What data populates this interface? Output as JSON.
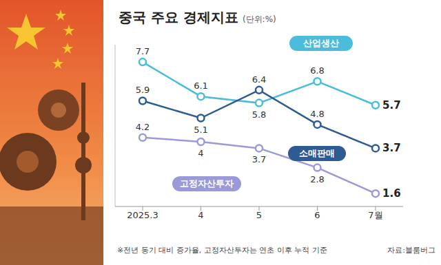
{
  "chart_data": {
    "type": "line",
    "title": "중국 주요 경제지표",
    "subtitle": "(단위:%)",
    "footnote": "※전년 동기 대비 증가율, 고정자산투자는 연초 이후 누적 기준",
    "source": "자료:블룸버그",
    "categories": [
      "2025.3",
      "4",
      "5",
      "6",
      "7월"
    ],
    "series": [
      {
        "name": "산업생산",
        "color": "#4bbcd9",
        "values": [
          7.7,
          6.1,
          5.8,
          6.8,
          5.7
        ],
        "marker": "circle"
      },
      {
        "name": "소매판매",
        "color": "#2e5b94",
        "values": [
          5.9,
          5.1,
          6.4,
          4.8,
          3.7
        ],
        "marker": "circle"
      },
      {
        "name": "고정자산투자",
        "color": "#9b9ad8",
        "values": [
          4.2,
          4.0,
          3.7,
          2.8,
          1.6
        ],
        "marker": "circle"
      }
    ],
    "ylim": [
      1,
      8.5
    ],
    "grid": false,
    "data_labels": true,
    "tick_labels": "x"
  }
}
